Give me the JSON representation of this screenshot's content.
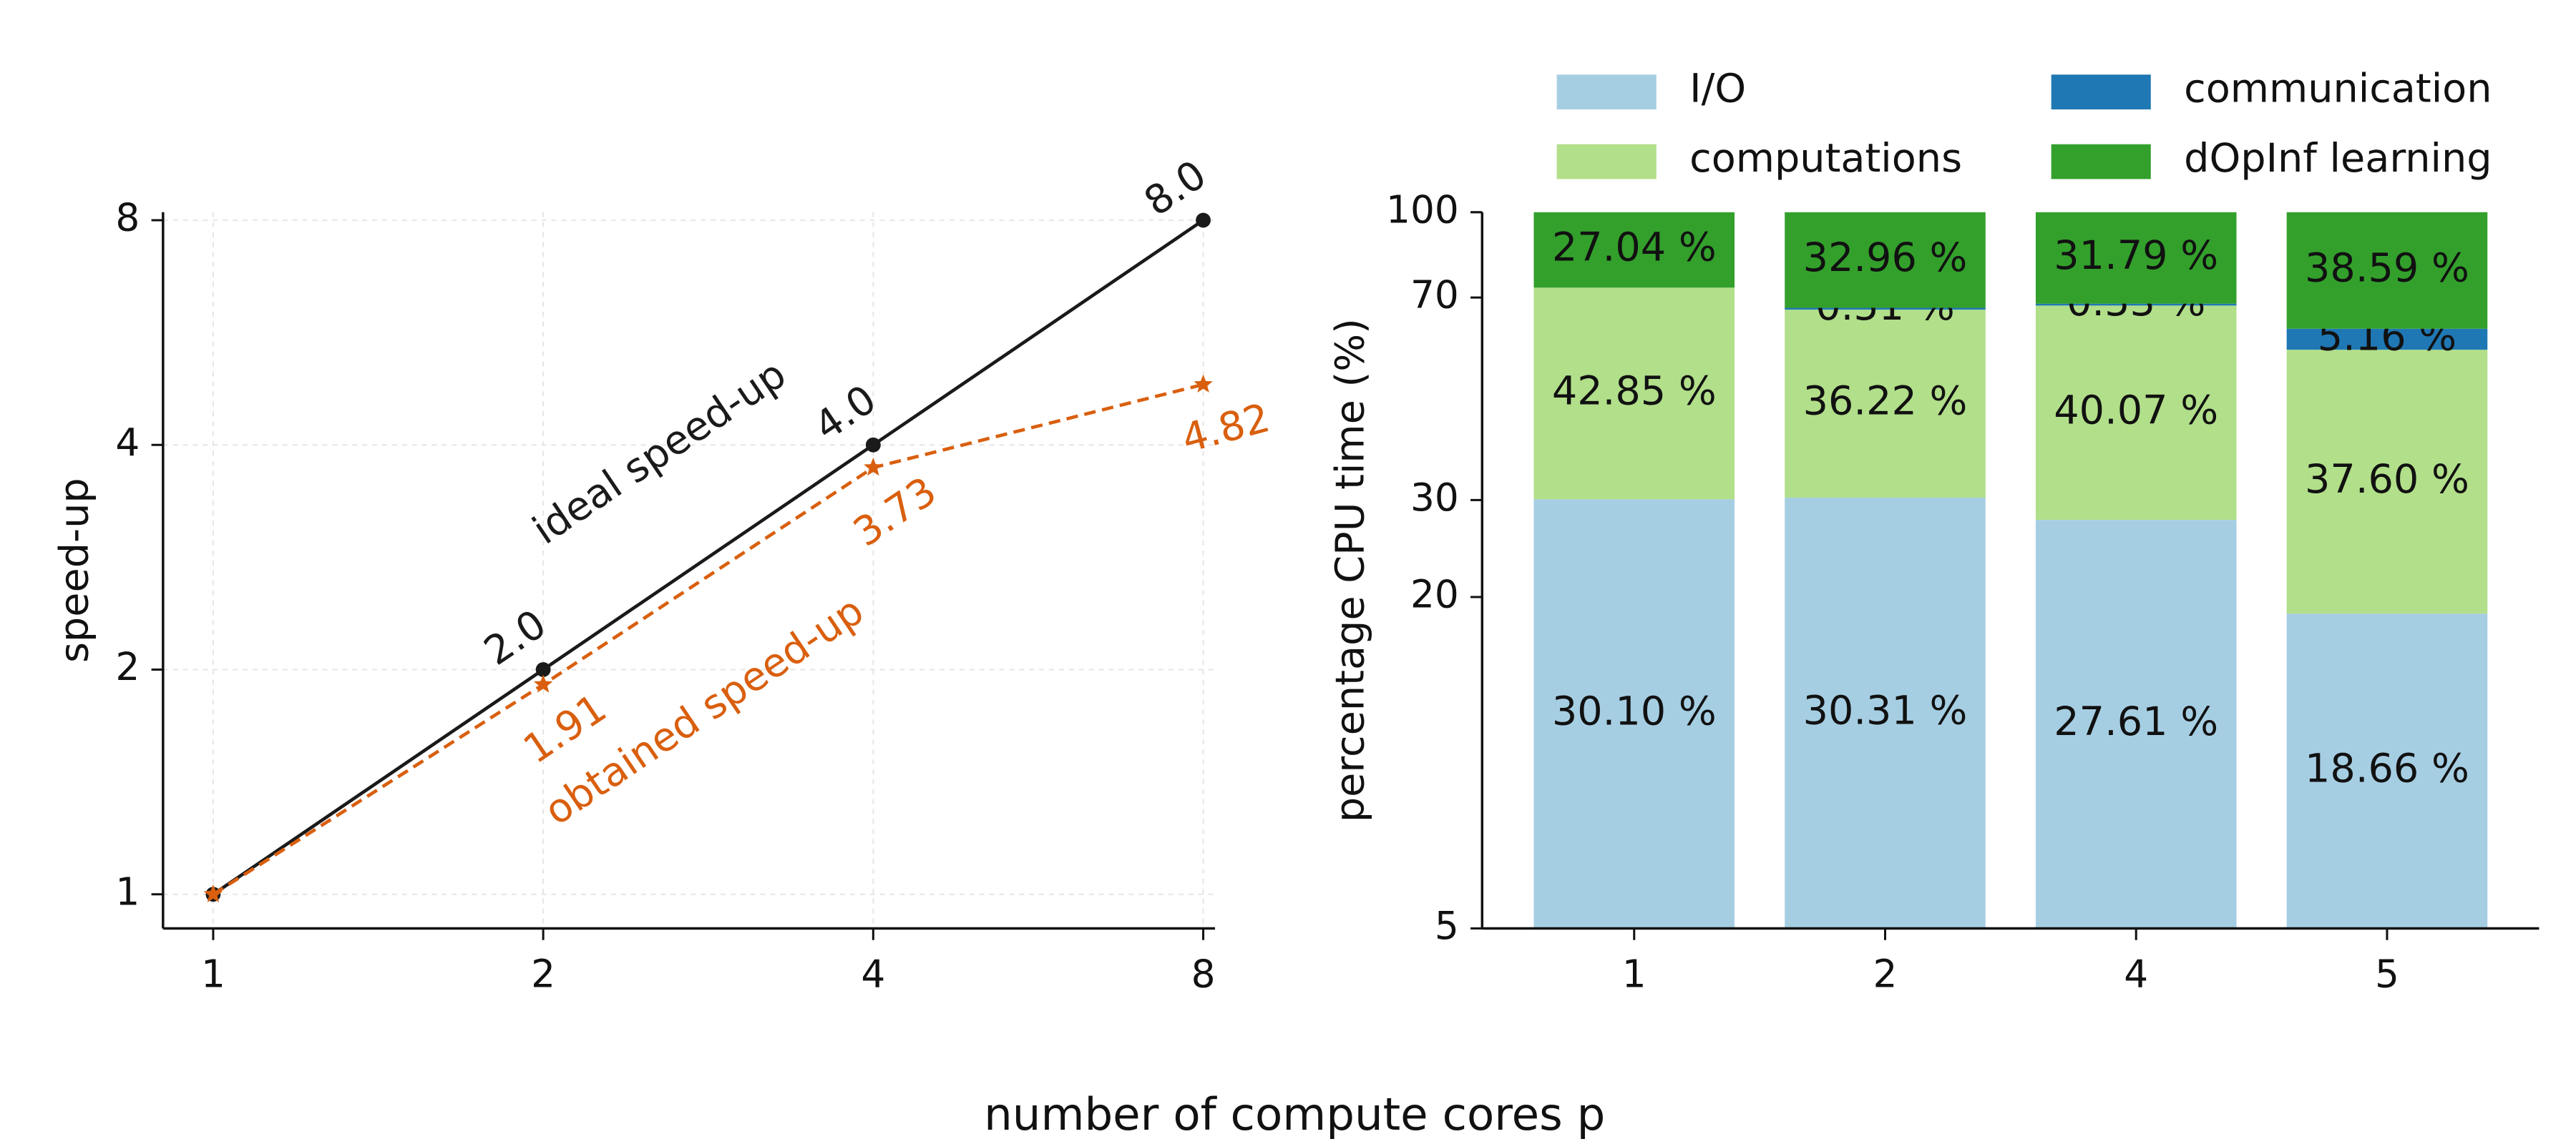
{
  "chart_data": [
    {
      "type": "line",
      "x": [
        1,
        2,
        4,
        8
      ],
      "xscale": "log",
      "yscale": "log",
      "xlim": [
        0.9,
        8.2
      ],
      "ylim": [
        0.9,
        8.2
      ],
      "xticks": [
        1,
        2,
        4,
        8
      ],
      "yticks": [
        1,
        2,
        4,
        8
      ],
      "ylabel": "speed-up",
      "grid": true,
      "series": [
        {
          "name": "ideal speed-up",
          "color": "#1a1a1a",
          "line_style": "solid",
          "marker": "circle",
          "values": [
            1,
            2,
            4,
            8
          ],
          "value_labels": [
            null,
            "2.0",
            "4.0",
            "8.0"
          ]
        },
        {
          "name": "obtained speed-up",
          "color": "#d95f0e",
          "line_style": "dashed",
          "marker": "star",
          "values": [
            1,
            1.91,
            3.73,
            4.82
          ],
          "value_labels": [
            null,
            "1.91",
            "3.73",
            "4.82"
          ]
        }
      ]
    },
    {
      "type": "bar",
      "stacked": true,
      "yscale": "log",
      "categories": [
        "1",
        "2",
        "4",
        "5"
      ],
      "ylim": [
        5,
        100
      ],
      "yticks": [
        5,
        20,
        30,
        70,
        100
      ],
      "ylabel": "percentage CPU time (%)",
      "legend": "top",
      "series": [
        {
          "name": "I/O",
          "color": "#a6cee3",
          "values": [
            30.1,
            30.31,
            27.61,
            18.66
          ],
          "value_labels": [
            "30.10 %",
            "30.31 %",
            "27.61 %",
            "18.66 %"
          ]
        },
        {
          "name": "computations",
          "color": "#b2df8a",
          "values": [
            42.85,
            36.22,
            40.07,
            37.6
          ],
          "value_labels": [
            "42.85 %",
            "36.22 %",
            "40.07 %",
            "37.60 %"
          ]
        },
        {
          "name": "communication",
          "color": "#1f78b4",
          "values": [
            0,
            0.51,
            0.53,
            5.16
          ],
          "value_labels": [
            null,
            "0.51 %",
            "0.53 %",
            "5.16 %"
          ]
        },
        {
          "name": "dOpInf learning",
          "color": "#33a02c",
          "values": [
            27.04,
            32.96,
            31.79,
            38.59
          ],
          "value_labels": [
            "27.04 %",
            "32.96 %",
            "31.79 %",
            "38.59 %"
          ]
        }
      ]
    }
  ],
  "supxlabel": "number of compute cores p"
}
